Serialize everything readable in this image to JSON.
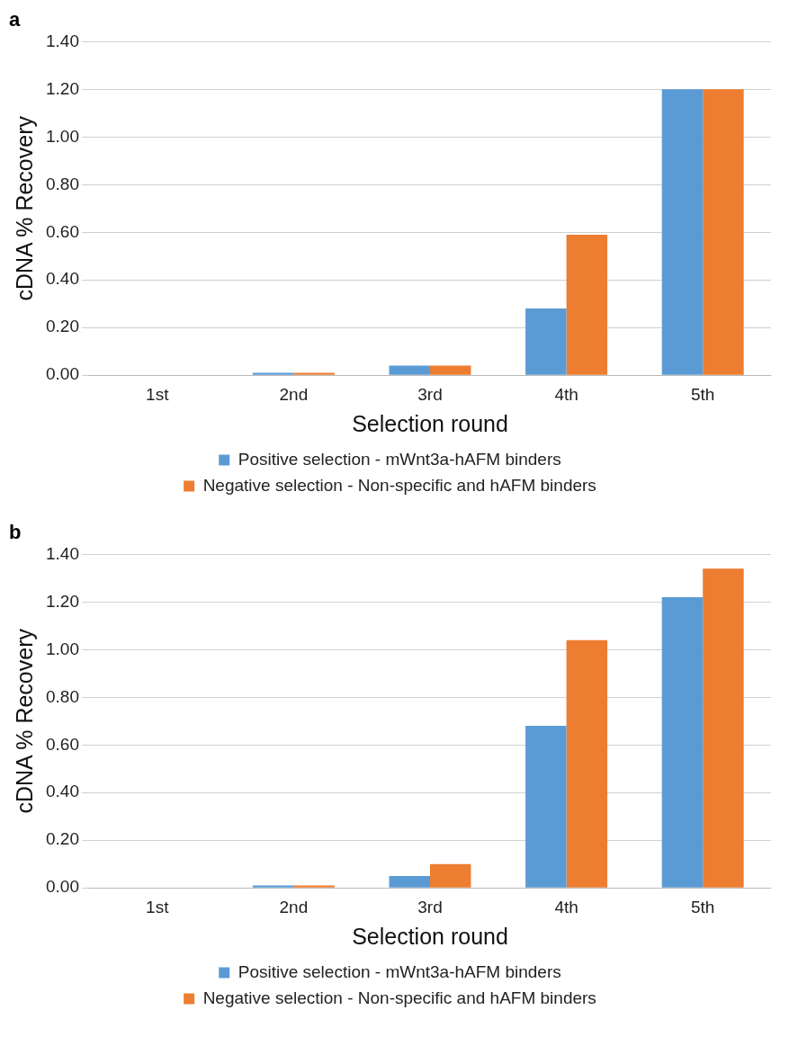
{
  "chart_data": [
    {
      "type": "bar",
      "title": "a",
      "xlabel": "Selection round",
      "ylabel": "cDNA % Recovery",
      "categories": [
        "1st",
        "2nd",
        "3rd",
        "4th",
        "5th"
      ],
      "series": [
        {
          "name": "Positive selection - mWnt3a-hAFM binders",
          "color": "#5b9bd5",
          "values": [
            0,
            0.01,
            0.04,
            0.28,
            1.2
          ]
        },
        {
          "name": "Negative selection - Non-specific and hAFM binders",
          "color": "#ed7d31",
          "values": [
            0,
            0.01,
            0.04,
            0.59,
            1.2
          ]
        }
      ],
      "ylim": [
        0,
        1.4
      ],
      "yticks": [
        {
          "value": 0,
          "label": "0.00"
        },
        {
          "value": 0.2,
          "label": "0.20"
        },
        {
          "value": 0.4,
          "label": "0.40"
        },
        {
          "value": 0.6,
          "label": "0.60"
        },
        {
          "value": 0.8,
          "label": "0.80"
        },
        {
          "value": 1,
          "label": "1.00"
        },
        {
          "value": 1.2,
          "label": "1.20"
        },
        {
          "value": 1.4,
          "label": "1.40"
        }
      ],
      "grid": "y",
      "legend": "bottom"
    },
    {
      "type": "bar",
      "title": "b",
      "xlabel": "Selection round",
      "ylabel": "cDNA % Recovery",
      "categories": [
        "1st",
        "2nd",
        "3rd",
        "4th",
        "5th"
      ],
      "series": [
        {
          "name": "Positive selection - mWnt3a-hAFM binders",
          "color": "#5b9bd5",
          "values": [
            0,
            0.01,
            0.05,
            0.68,
            1.22
          ]
        },
        {
          "name": "Negative selection - Non-specific and hAFM binders",
          "color": "#ed7d31",
          "values": [
            0,
            0.01,
            0.1,
            1.04,
            1.34
          ]
        }
      ],
      "ylim": [
        0,
        1.4
      ],
      "yticks": [
        {
          "value": 0,
          "label": "0.00"
        },
        {
          "value": 0.2,
          "label": "0.20"
        },
        {
          "value": 0.4,
          "label": "0.40"
        },
        {
          "value": 0.6,
          "label": "0.60"
        },
        {
          "value": 0.8,
          "label": "0.80"
        },
        {
          "value": 1,
          "label": "1.00"
        },
        {
          "value": 1.2,
          "label": "1.20"
        },
        {
          "value": 1.4,
          "label": "1.40"
        }
      ],
      "grid": "y",
      "legend": "bottom"
    }
  ]
}
